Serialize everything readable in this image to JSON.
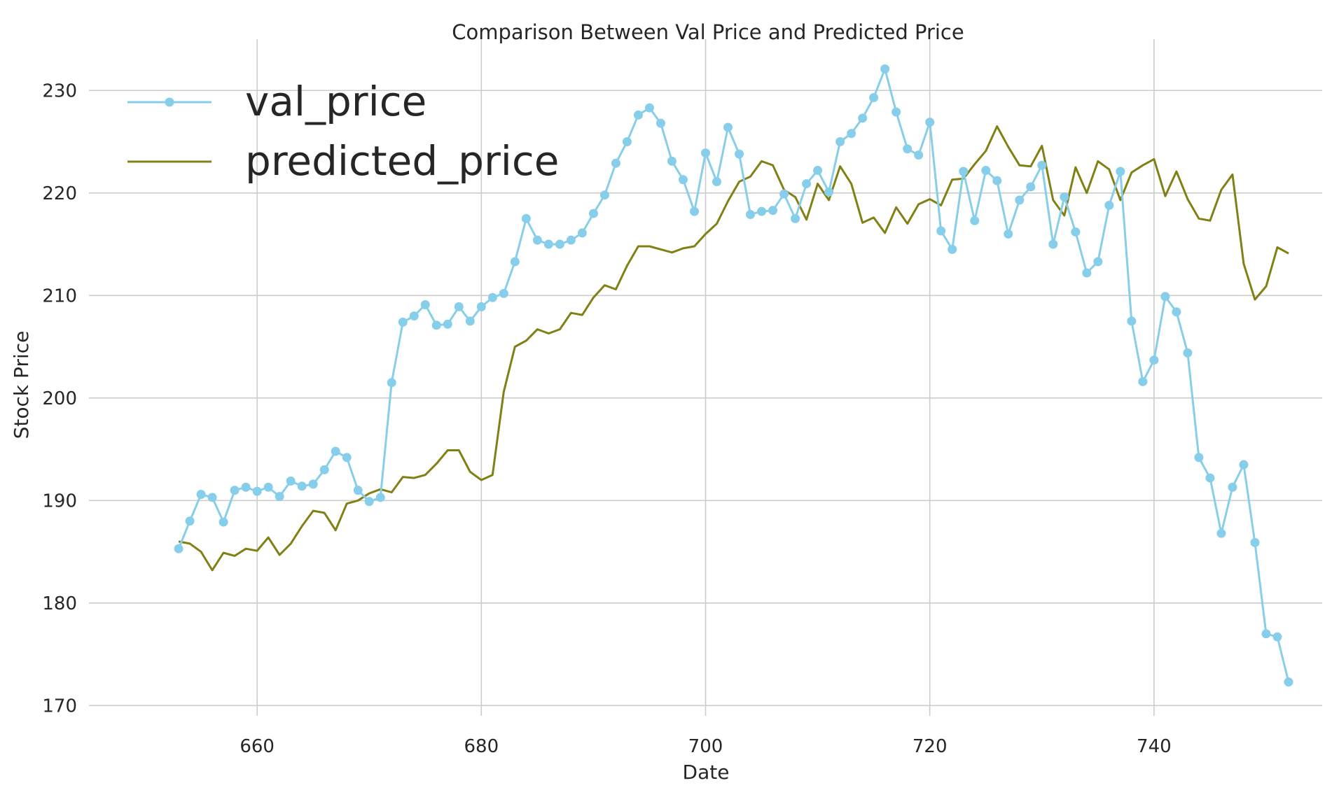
{
  "chart_data": {
    "type": "line",
    "title": "Comparison Between Val Price and Predicted Price",
    "xlabel": "Date",
    "ylabel": "Stock Price",
    "xlim": [
      645,
      755
    ],
    "ylim": [
      169,
      235
    ],
    "xticks": [
      660,
      680,
      700,
      720,
      740
    ],
    "yticks": [
      170,
      180,
      190,
      200,
      210,
      220,
      230
    ],
    "grid": true,
    "legend_position": "top-left",
    "x": [
      653,
      654,
      655,
      656,
      657,
      658,
      659,
      660,
      661,
      662,
      663,
      664,
      665,
      666,
      667,
      668,
      669,
      670,
      671,
      672,
      673,
      674,
      675,
      676,
      677,
      678,
      679,
      680,
      681,
      682,
      683,
      684,
      685,
      686,
      687,
      688,
      689,
      690,
      691,
      692,
      693,
      694,
      695,
      696,
      697,
      698,
      699,
      700,
      701,
      702,
      703,
      704,
      705,
      706,
      707,
      708,
      709,
      710,
      711,
      712,
      713,
      714,
      715,
      716,
      717,
      718,
      719,
      720,
      721,
      722,
      723,
      724,
      725,
      726,
      727,
      728,
      729,
      730,
      731,
      732,
      733,
      734,
      735,
      736,
      737,
      738,
      739,
      740,
      741,
      742,
      743,
      744,
      745,
      746,
      747,
      748,
      749,
      750,
      751,
      752
    ],
    "series": [
      {
        "name": "val_price",
        "color": "#87ceeb",
        "marker": "circle",
        "values": [
          185.3,
          188.0,
          190.6,
          190.3,
          187.9,
          191.0,
          191.3,
          190.9,
          191.3,
          190.4,
          191.9,
          191.4,
          191.6,
          193.0,
          194.8,
          194.2,
          191.0,
          189.9,
          190.3,
          201.5,
          207.4,
          208.0,
          209.1,
          207.1,
          207.2,
          208.9,
          207.5,
          208.9,
          209.8,
          210.2,
          213.3,
          217.5,
          215.4,
          215.0,
          215.0,
          215.4,
          216.1,
          218.0,
          219.8,
          222.9,
          225.0,
          227.6,
          228.3,
          226.8,
          223.1,
          221.3,
          218.2,
          223.9,
          221.1,
          226.4,
          223.8,
          217.9,
          218.2,
          218.3,
          219.9,
          217.5,
          220.9,
          222.2,
          220.1,
          225.0,
          225.8,
          227.3,
          229.3,
          232.1,
          227.9,
          224.3,
          223.7,
          226.9,
          216.3,
          214.5,
          222.1,
          217.3,
          222.2,
          221.2,
          216.0,
          219.3,
          220.6,
          222.7,
          215.0,
          219.6,
          216.2,
          212.2,
          213.3,
          218.8,
          222.1,
          207.5,
          201.6,
          203.7,
          209.9,
          208.4,
          204.4,
          194.2,
          192.2,
          186.8,
          191.3,
          193.5,
          185.9,
          177.0,
          176.7,
          172.3
        ]
      },
      {
        "name": "predicted_price",
        "color": "#808015",
        "marker": "none",
        "values": [
          186.0,
          185.8,
          185.0,
          183.2,
          184.9,
          184.6,
          185.3,
          185.1,
          186.4,
          184.7,
          185.8,
          187.5,
          189.0,
          188.8,
          187.1,
          189.7,
          190.0,
          190.7,
          191.1,
          190.8,
          192.3,
          192.2,
          192.5,
          193.6,
          194.9,
          194.9,
          192.8,
          192.0,
          192.5,
          200.6,
          205.0,
          205.6,
          206.7,
          206.3,
          206.7,
          208.3,
          208.1,
          209.8,
          211.0,
          210.6,
          212.9,
          214.8,
          214.8,
          214.5,
          214.2,
          214.6,
          214.8,
          216.0,
          217.0,
          219.2,
          221.1,
          221.6,
          223.1,
          222.7,
          220.3,
          219.6,
          217.4,
          220.9,
          219.3,
          222.6,
          220.9,
          217.1,
          217.6,
          216.1,
          218.6,
          217.0,
          218.9,
          219.4,
          218.8,
          221.3,
          221.4,
          222.8,
          224.1,
          226.5,
          224.5,
          222.7,
          222.6,
          224.6,
          219.3,
          217.8,
          222.5,
          220.0,
          223.1,
          222.3,
          219.3,
          222.0,
          222.7,
          223.3,
          219.7,
          222.1,
          219.4,
          217.5,
          217.3,
          220.3,
          221.8,
          213.1,
          209.6,
          210.9,
          214.7,
          214.1
        ]
      }
    ]
  }
}
